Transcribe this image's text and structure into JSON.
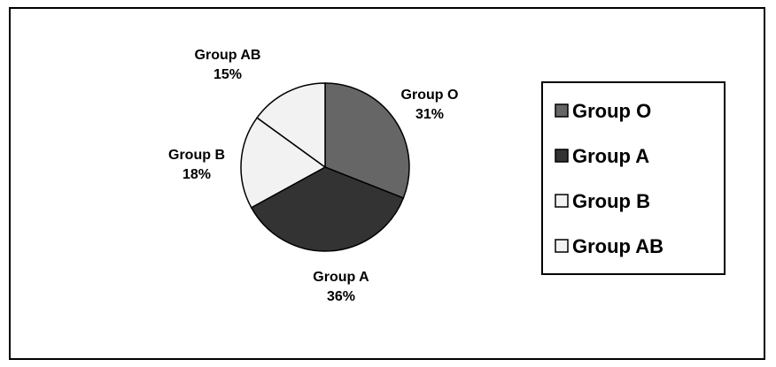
{
  "chart_data": {
    "type": "pie",
    "title": "",
    "slices": [
      {
        "label": "Group O",
        "value": 31,
        "display": "31%",
        "color": "#666666"
      },
      {
        "label": "Group A",
        "value": 36,
        "display": "36%",
        "color": "#333333"
      },
      {
        "label": "Group B",
        "value": 18,
        "display": "18%",
        "color": "#f2f2f2"
      },
      {
        "label": "Group AB",
        "value": 15,
        "display": "15%",
        "color": "#f2f2f2"
      }
    ],
    "legend": {
      "position": "right",
      "entries": [
        "Group O",
        "Group A",
        "Group B",
        "Group AB"
      ]
    }
  }
}
